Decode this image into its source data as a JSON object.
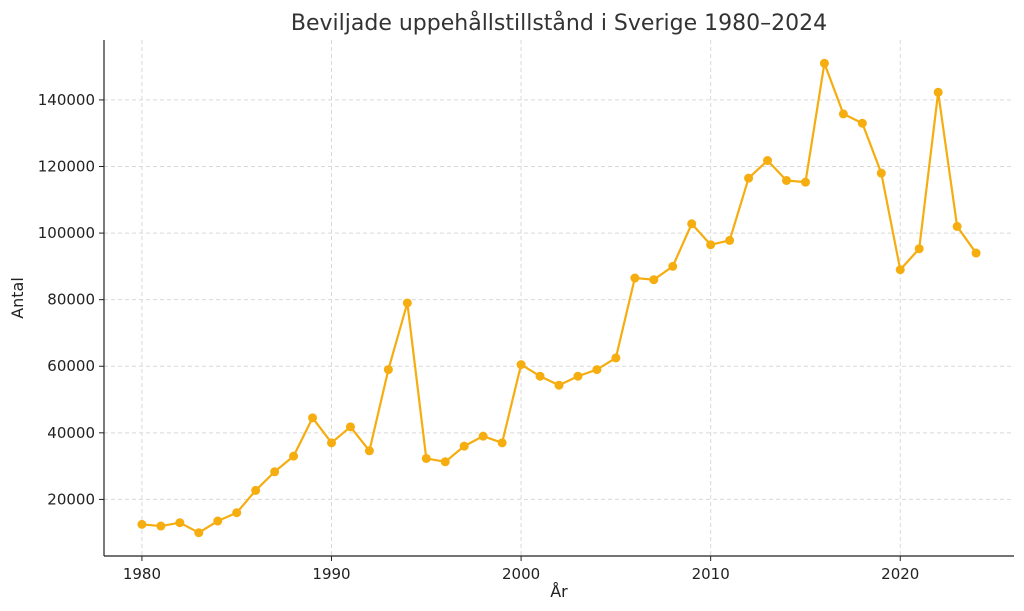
{
  "chart_data": {
    "type": "line",
    "title": "Beviljade uppehållstillstånd i Sverige 1980–2024",
    "xlabel": "År",
    "ylabel": "Antal",
    "xlim": [
      1978,
      2026
    ],
    "ylim": [
      3000,
      158000
    ],
    "x_ticks": [
      1980,
      1990,
      2000,
      2010,
      2020
    ],
    "y_ticks": [
      20000,
      40000,
      60000,
      80000,
      100000,
      120000,
      140000
    ],
    "grid": true,
    "series": [
      {
        "color": "#f5ad0f",
        "points": [
          [
            1980,
            12500
          ],
          [
            1981,
            12000
          ],
          [
            1982,
            13000
          ],
          [
            1983,
            10000
          ],
          [
            1984,
            13500
          ],
          [
            1985,
            16000
          ],
          [
            1986,
            22700
          ],
          [
            1987,
            28300
          ],
          [
            1988,
            33000
          ],
          [
            1989,
            44500
          ],
          [
            1990,
            37000
          ],
          [
            1991,
            41800
          ],
          [
            1992,
            34600
          ],
          [
            1993,
            59000
          ],
          [
            1994,
            79000
          ],
          [
            1995,
            32300
          ],
          [
            1996,
            31300
          ],
          [
            1997,
            36000
          ],
          [
            1998,
            39000
          ],
          [
            1999,
            37000
          ],
          [
            2000,
            60500
          ],
          [
            2001,
            57000
          ],
          [
            2002,
            54300
          ],
          [
            2003,
            57000
          ],
          [
            2004,
            59000
          ],
          [
            2005,
            62500
          ],
          [
            2006,
            86500
          ],
          [
            2007,
            86000
          ],
          [
            2008,
            90000
          ],
          [
            2009,
            102800
          ],
          [
            2010,
            96500
          ],
          [
            2011,
            97800
          ],
          [
            2012,
            116500
          ],
          [
            2013,
            121800
          ],
          [
            2014,
            115800
          ],
          [
            2015,
            115300
          ],
          [
            2016,
            151000
          ],
          [
            2017,
            135800
          ],
          [
            2018,
            133000
          ],
          [
            2019,
            118000
          ],
          [
            2020,
            89000
          ],
          [
            2021,
            95300
          ],
          [
            2022,
            142300
          ],
          [
            2023,
            102000
          ],
          [
            2024,
            94000
          ]
        ]
      }
    ]
  }
}
